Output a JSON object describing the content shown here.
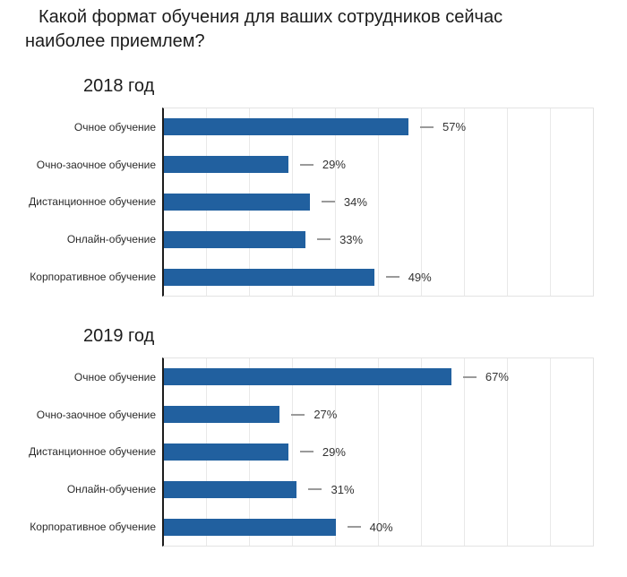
{
  "page": {
    "title": "Какой формат обучения для ваших сотрудников сейчас наиболее приемлем?"
  },
  "colors": {
    "bar": "#21609f",
    "grid": "#e9e9e9",
    "plot_border": "#e3e3e3",
    "axis": "#1c1c1c",
    "dash": "#9a9a9a",
    "text": "#1c1c1c"
  },
  "chart_data": [
    {
      "type": "bar",
      "orientation": "horizontal",
      "title": "2018 год",
      "categories": [
        "Очное обучение",
        "Очно-заочное обучение",
        "Дистанционное обучение",
        "Онлайн-обучение",
        "Корпоративное обучение"
      ],
      "values": [
        57,
        29,
        34,
        33,
        49
      ],
      "value_labels": [
        "57%",
        "29%",
        "34%",
        "33%",
        "49%"
      ],
      "xlim": [
        0,
        100
      ],
      "grid_interval": 10,
      "grid": true,
      "legend": false
    },
    {
      "type": "bar",
      "orientation": "horizontal",
      "title": "2019 год",
      "categories": [
        "Очное обучение",
        "Очно-заочное обучение",
        "Дистанционное обучение",
        "Онлайн-обучение",
        "Корпоративное обучение"
      ],
      "values": [
        67,
        27,
        29,
        31,
        40
      ],
      "value_labels": [
        "67%",
        "27%",
        "29%",
        "31%",
        "40%"
      ],
      "xlim": [
        0,
        100
      ],
      "grid_interval": 10,
      "grid": true,
      "legend": false
    }
  ]
}
